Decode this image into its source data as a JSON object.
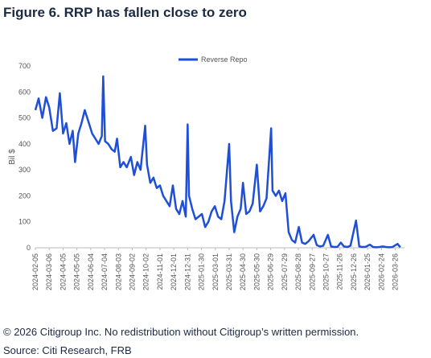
{
  "chart_data": {
    "type": "line",
    "title": "Figure 6. RRP has fallen close to zero",
    "ylabel": "Bil $",
    "x": [
      "2024-02-05",
      "2024-02-12",
      "2024-02-20",
      "2024-02-28",
      "2024-03-06",
      "2024-03-14",
      "2024-03-22",
      "2024-03-29",
      "2024-04-05",
      "2024-04-12",
      "2024-04-19",
      "2024-04-26",
      "2024-05-01",
      "2024-05-08",
      "2024-05-15",
      "2024-05-22",
      "2024-05-31",
      "2024-06-07",
      "2024-06-14",
      "2024-06-21",
      "2024-06-28",
      "2024-07-01",
      "2024-07-05",
      "2024-07-12",
      "2024-07-19",
      "2024-07-26",
      "2024-07-31",
      "2024-08-07",
      "2024-08-14",
      "2024-08-21",
      "2024-08-30",
      "2024-09-06",
      "2024-09-13",
      "2024-09-20",
      "2024-09-30",
      "2024-10-04",
      "2024-10-11",
      "2024-10-18",
      "2024-10-25",
      "2024-11-01",
      "2024-11-08",
      "2024-11-15",
      "2024-11-22",
      "2024-11-29",
      "2024-12-06",
      "2024-12-13",
      "2024-12-20",
      "2024-12-27",
      "2024-12-31",
      "2025-01-03",
      "2025-01-10",
      "2025-01-17",
      "2025-01-24",
      "2025-01-31",
      "2025-02-07",
      "2025-02-14",
      "2025-02-21",
      "2025-02-28",
      "2025-03-07",
      "2025-03-14",
      "2025-03-21",
      "2025-03-31",
      "2025-04-04",
      "2025-04-11",
      "2025-04-18",
      "2025-04-25",
      "2025-04-30",
      "2025-05-07",
      "2025-05-14",
      "2025-05-21",
      "2025-05-30",
      "2025-06-06",
      "2025-06-13",
      "2025-06-20",
      "2025-06-30",
      "2025-07-03",
      "2025-07-10",
      "2025-07-17",
      "2025-07-24",
      "2025-07-31",
      "2025-08-07",
      "2025-08-14",
      "2025-08-21",
      "2025-08-29",
      "2025-09-05",
      "2025-09-12",
      "2025-09-19",
      "2025-09-30",
      "2025-10-07",
      "2025-10-14",
      "2025-10-21",
      "2025-10-31",
      "2025-11-07",
      "2025-11-14",
      "2025-11-21",
      "2025-11-28",
      "2025-12-05",
      "2025-12-12",
      "2025-12-19",
      "2025-12-31",
      "2026-01-07",
      "2026-01-14",
      "2026-01-21",
      "2026-01-30",
      "2026-02-06",
      "2026-02-13",
      "2026-02-20",
      "2026-02-27",
      "2026-03-06",
      "2026-03-13",
      "2026-03-20",
      "2026-03-31",
      "2026-04-06"
    ],
    "series": [
      {
        "name": "Reverse Repo",
        "color": "#1f4fd6",
        "values": [
          530,
          575,
          500,
          580,
          540,
          450,
          460,
          595,
          440,
          480,
          400,
          450,
          330,
          440,
          480,
          530,
          480,
          440,
          420,
          400,
          430,
          660,
          410,
          400,
          380,
          370,
          420,
          310,
          330,
          310,
          350,
          280,
          330,
          300,
          470,
          320,
          250,
          270,
          230,
          240,
          200,
          180,
          160,
          240,
          150,
          130,
          180,
          120,
          475,
          200,
          150,
          110,
          120,
          130,
          80,
          100,
          140,
          160,
          120,
          110,
          180,
          400,
          180,
          60,
          120,
          150,
          250,
          130,
          140,
          170,
          320,
          140,
          160,
          190,
          460,
          220,
          200,
          220,
          180,
          210,
          60,
          30,
          20,
          80,
          20,
          15,
          25,
          50,
          10,
          5,
          8,
          50,
          5,
          3,
          4,
          20,
          5,
          3,
          8,
          105,
          5,
          3,
          4,
          12,
          3,
          2,
          3,
          5,
          3,
          2,
          3,
          15,
          2
        ]
      }
    ],
    "xlim": [
      "2024-02-05",
      "2026-04-15"
    ],
    "xticks": [
      "2024-02-05",
      "2024-03-06",
      "2024-04-05",
      "2024-05-05",
      "2024-06-04",
      "2024-07-04",
      "2024-08-03",
      "2024-09-02",
      "2024-10-02",
      "2024-11-01",
      "2024-12-01",
      "2024-12-31",
      "2025-01-30",
      "2025-03-01",
      "2025-03-31",
      "2025-04-30",
      "2025-05-30",
      "2025-06-29",
      "2025-07-29",
      "2025-08-28",
      "2025-09-27",
      "2025-10-27",
      "2025-11-26",
      "2025-12-26",
      "2026-01-25",
      "2026-02-24",
      "2026-03-26"
    ],
    "ylim": [
      0,
      700
    ],
    "yticks": [
      0,
      100,
      200,
      300,
      400,
      500,
      600,
      700
    ],
    "grid": false
  },
  "copyright": "© 2026 Citigroup Inc. No redistribution without Citigroup’s written permission.",
  "source": "Source: Citi Research, FRB"
}
